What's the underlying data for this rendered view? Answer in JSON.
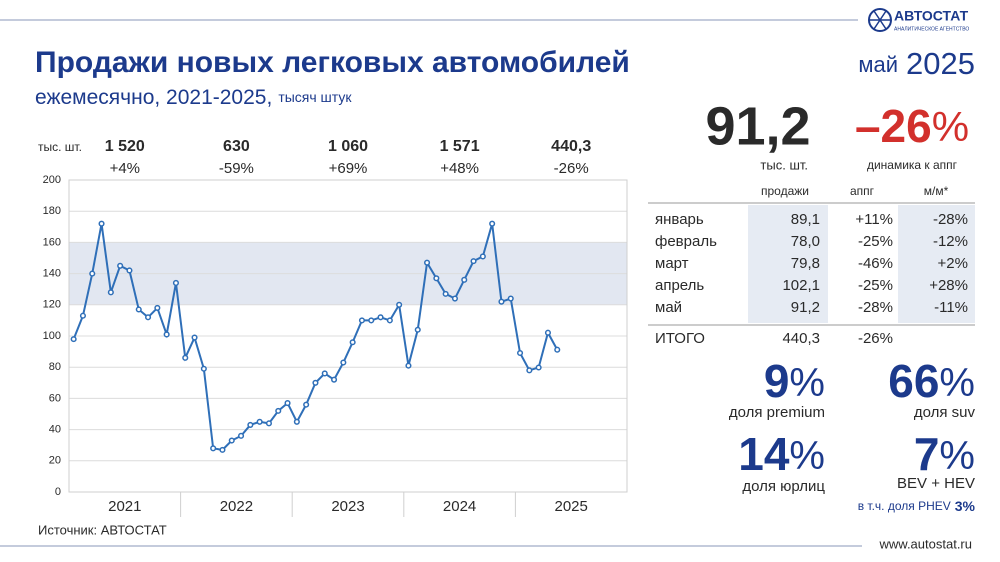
{
  "header": {
    "title": "Продажи новых легковых автомобилей",
    "subtitle": "ежемесячно, 2021-2025,",
    "subtitle_unit": "тысяч штук",
    "period_month": "май",
    "period_year": "2025",
    "logo": "АВТОСТАТ",
    "logo_tagline": "АНАЛИТИЧЕСКОЕ АГЕНТСТВО"
  },
  "chart_data": {
    "type": "line",
    "color": "#2f6fb8",
    "categories": [
      null,
      null,
      null,
      null,
      null,
      null,
      null,
      null,
      null,
      null,
      null,
      null,
      null,
      null,
      null,
      null,
      null,
      null,
      null,
      null,
      null,
      null,
      null,
      null,
      null,
      null,
      null,
      null,
      null,
      null,
      null,
      null,
      null,
      null,
      null,
      null,
      null,
      null,
      null,
      null,
      null,
      null,
      null,
      null,
      null,
      null,
      null,
      null,
      null,
      null,
      null,
      null,
      null
    ],
    "values": [
      98,
      113,
      140,
      172,
      128,
      145,
      142,
      117,
      112,
      118,
      101,
      134,
      86,
      99,
      79,
      28,
      27,
      33,
      36,
      43,
      45,
      44,
      52,
      57,
      45,
      56,
      70,
      76,
      72,
      83,
      96,
      110,
      110,
      112,
      110,
      120,
      81,
      104,
      147,
      137,
      127,
      124,
      136,
      148,
      151,
      172,
      122,
      124,
      89.1,
      78.0,
      79.8,
      102.1,
      91.2
    ],
    "ylim": [
      0,
      200
    ],
    "yticks": [
      0,
      20,
      40,
      60,
      80,
      100,
      120,
      140,
      160,
      180,
      200
    ],
    "grid": true,
    "band": [
      120,
      160
    ],
    "band_color": "#e2e7f1",
    "year_labels": [
      "2021",
      "2022",
      "2023",
      "2024",
      "2025"
    ],
    "totals_unit": "тыс. шт.",
    "year_totals": [
      "1 520",
      "630",
      "1 060",
      "1 571",
      "440,3"
    ],
    "year_changes": [
      "+4%",
      "-59%",
      "+69%",
      "+48%",
      "-26%"
    ]
  },
  "summary": {
    "sales": "91,2",
    "sales_unit": "тыс. шт.",
    "change": "–26",
    "change_unit": "%",
    "change_label": "динамика к аппг"
  },
  "table": {
    "columns": [
      "продажи",
      "аппг",
      "м/м*"
    ],
    "rows": [
      [
        "январь",
        "89,1",
        "+11%",
        "-28%"
      ],
      [
        "февраль",
        "78,0",
        "-25%",
        "-12%"
      ],
      [
        "март",
        "79,8",
        "-46%",
        "+2%"
      ],
      [
        "апрель",
        "102,1",
        "-25%",
        "+28%"
      ],
      [
        "май",
        "91,2",
        "-28%",
        "-11%"
      ]
    ],
    "total": [
      "ИТОГО",
      "440,3",
      "-26%"
    ]
  },
  "kpis": [
    {
      "value": "9",
      "unit": "%",
      "label": "доля premium"
    },
    {
      "value": "66",
      "unit": "%",
      "label": "доля suv"
    },
    {
      "value": "14",
      "unit": "%",
      "label": "доля юрлиц"
    },
    {
      "value": "7",
      "unit": "%",
      "label": "BEV + HEV"
    }
  ],
  "kpi_note": {
    "text": "в т.ч. доля PHEV",
    "value": "3%"
  },
  "footer": {
    "source": "Источник: АВТОСТАТ",
    "url": "www.autostat.ru"
  }
}
